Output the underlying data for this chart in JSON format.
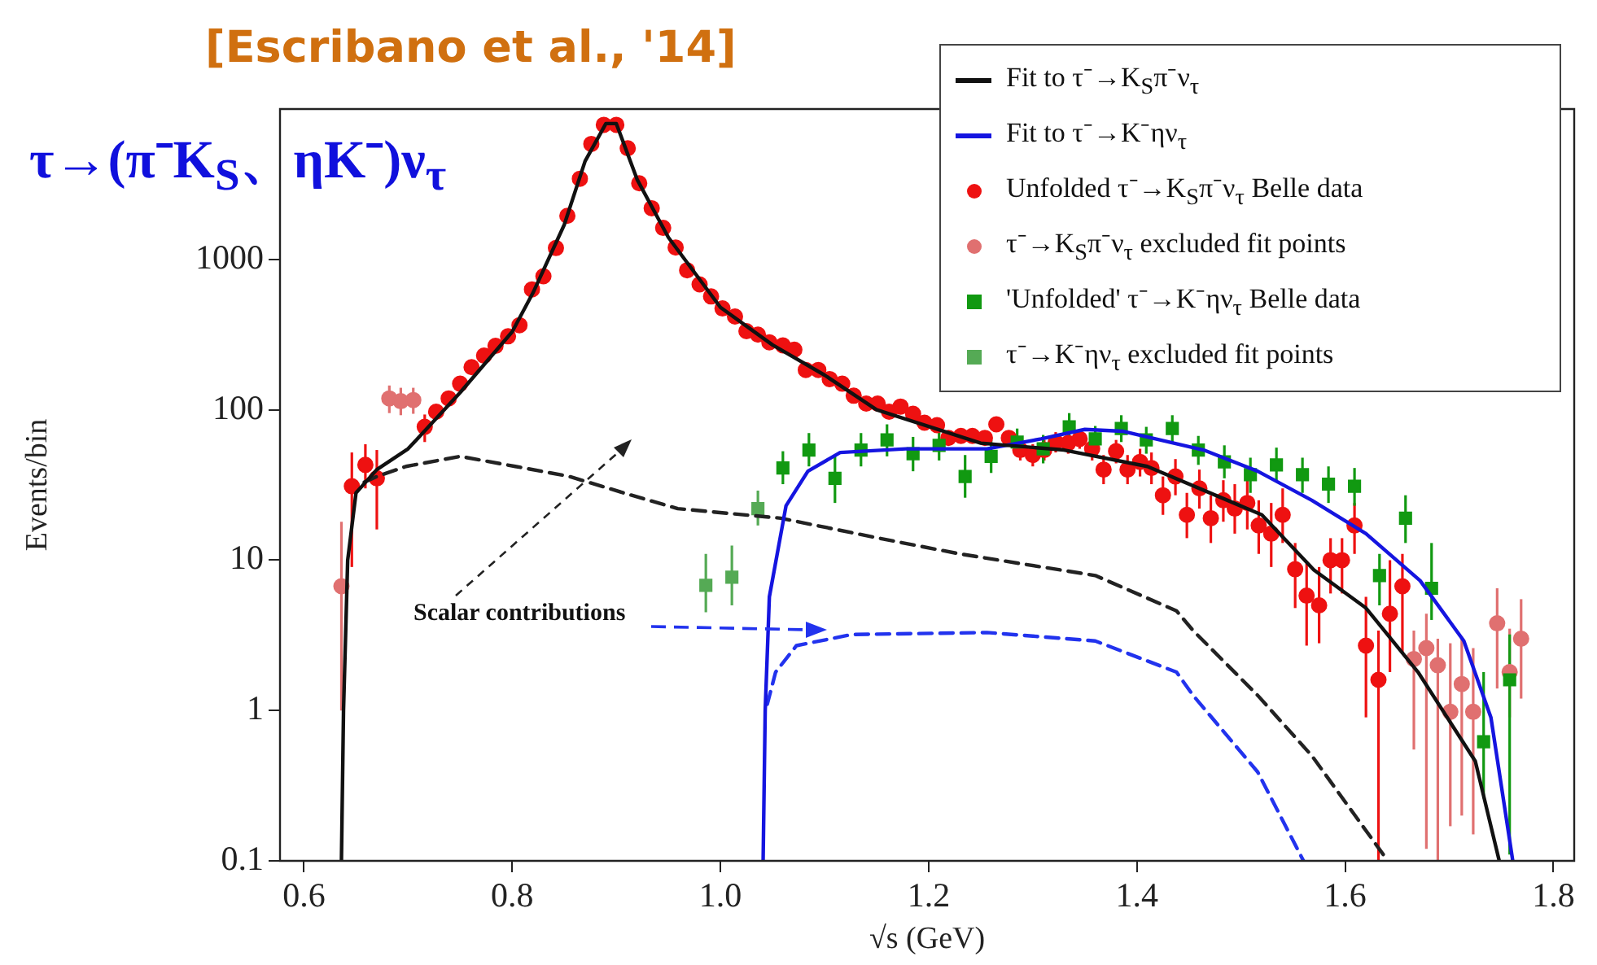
{
  "chart_data": {
    "type": "scatter",
    "title": "τ→(π⁻K$_{S}$、ηK⁻)ν$_{τ}$",
    "xlabel": "√s (GeV)",
    "ylabel": "Events/bin",
    "annotations": [
      "[Escribano et al., '14]",
      "Scalar contributions"
    ],
    "xlim": [
      0.577,
      1.82
    ],
    "xticks": [
      0.6,
      0.8,
      {
        "value": 1,
        "label": "1.0"
      },
      1.2,
      1.4,
      1.6,
      1.8
    ],
    "ylim": [
      0.1,
      10000
    ],
    "yticks": [
      0.1,
      1,
      10,
      100,
      1000
    ],
    "log": true,
    "legend": "top right",
    "series": [
      {
        "name": "Fit to τ⁻→K$_{S}$π⁻ν$_{τ}$",
        "type": "line",
        "line_style": "solid",
        "marker": "none",
        "color": "#111111",
        "x": [
          0.636,
          0.638,
          0.642,
          0.65,
          0.67,
          0.7,
          0.75,
          0.8,
          0.82,
          0.85,
          0.87,
          0.89,
          0.9,
          0.92,
          0.95,
          1.0,
          1.05,
          1.1,
          1.15,
          1.25,
          1.33,
          1.41,
          1.52,
          1.57,
          1.62,
          1.67,
          1.725,
          1.748
        ],
        "values": [
          0.1,
          1,
          10,
          28,
          40,
          55,
          130,
          330,
          600,
          1700,
          4500,
          8000,
          8000,
          3400,
          1400,
          480,
          270,
          170,
          100,
          60,
          54,
          42,
          20,
          8.6,
          4.8,
          1.8,
          0.46,
          0.1
        ]
      },
      {
        "name": "Fit to τ⁻→K⁻ην$_{τ}$",
        "type": "line",
        "line_style": "solid",
        "marker": "none",
        "color": "#1515e0",
        "x": [
          1.041,
          1.043,
          1.047,
          1.063,
          1.084,
          1.115,
          1.178,
          1.256,
          1.308,
          1.35,
          1.386,
          1.464,
          1.516,
          1.568,
          1.62,
          1.672,
          1.714,
          1.74,
          1.761
        ],
        "values": [
          0.1,
          1,
          5.7,
          23,
          39,
          52,
          55,
          55,
          64,
          74,
          72,
          54,
          39,
          25,
          15,
          7.3,
          2.9,
          0.9,
          0.1
        ]
      },
      {
        "name": "Unfolded τ⁻→K$_{S}$π⁻ν$_{τ}$ Belle data",
        "type": "scatter",
        "marker": "circle",
        "color": "#ee1111",
        "x": [
          0.646,
          0.659,
          0.67,
          0.716,
          0.727,
          0.739,
          0.75,
          0.761,
          0.773,
          0.784,
          0.796,
          0.807,
          0.819,
          0.83,
          0.842,
          0.853,
          0.865,
          0.876,
          0.888,
          0.9,
          0.911,
          0.922,
          0.934,
          0.945,
          0.957,
          0.968,
          0.98,
          0.991,
          1.002,
          1.014,
          1.025,
          1.036,
          1.047,
          1.06,
          1.071,
          1.082,
          1.094,
          1.105,
          1.117,
          1.128,
          1.14,
          1.151,
          1.162,
          1.173,
          1.185,
          1.196,
          1.208,
          1.219,
          1.231,
          1.242,
          1.254,
          1.265,
          1.277,
          1.288,
          1.3,
          1.311,
          1.322,
          1.334,
          1.345,
          1.357,
          1.368,
          1.38,
          1.391,
          1.403,
          1.414,
          1.425,
          1.437,
          1.448,
          1.46,
          1.471,
          1.483,
          1.494,
          1.506,
          1.517,
          1.529,
          1.54,
          1.552,
          1.563,
          1.575,
          1.586,
          1.597,
          1.609,
          1.62,
          1.632,
          1.643,
          1.655
        ],
        "values": [
          31,
          43,
          35,
          77,
          97,
          119,
          149,
          192,
          229,
          266,
          308,
          365,
          632,
          773,
          1190,
          1950,
          3440,
          5860,
          7850,
          7850,
          5480,
          3210,
          2190,
          1620,
          1200,
          847,
          682,
          567,
          472,
          417,
          333,
          316,
          281,
          268,
          251,
          184,
          184,
          160,
          149,
          124,
          110,
          110,
          97,
          105,
          94,
          82,
          79,
          65,
          67,
          67,
          65,
          80,
          65,
          54,
          50,
          54,
          61,
          60,
          64,
          55,
          40,
          53,
          40,
          45,
          41,
          27,
          36,
          20,
          30,
          19,
          25,
          22,
          24,
          17,
          15,
          20,
          8.7,
          5.8,
          5.0,
          10,
          10,
          17,
          2.7,
          1.6,
          4.4,
          6.7
        ],
        "errors": [
          [
            9,
            52
          ],
          [
            30,
            59
          ],
          [
            16,
            54
          ],
          [
            61,
            93
          ],
          null,
          null,
          null,
          null,
          null,
          null,
          null,
          null,
          null,
          null,
          null,
          null,
          null,
          null,
          null,
          null,
          null,
          null,
          null,
          null,
          null,
          null,
          null,
          null,
          null,
          null,
          null,
          null,
          null,
          null,
          null,
          null,
          null,
          null,
          null,
          null,
          null,
          null,
          null,
          null,
          null,
          null,
          null,
          null,
          null,
          null,
          null,
          null,
          null,
          [
            46,
            63
          ],
          [
            42,
            59
          ],
          [
            46,
            63
          ],
          [
            52,
            71
          ],
          [
            51,
            70
          ],
          [
            55,
            74
          ],
          [
            46,
            65
          ],
          [
            32,
            50
          ],
          [
            44,
            63
          ],
          [
            32,
            50
          ],
          [
            36,
            55
          ],
          [
            32,
            52
          ],
          [
            20,
            36
          ],
          [
            27,
            47
          ],
          [
            14,
            28
          ],
          [
            22,
            40
          ],
          [
            13,
            27
          ],
          [
            18,
            34
          ],
          [
            15,
            32
          ],
          [
            16,
            34
          ],
          [
            11,
            25
          ],
          [
            9,
            24
          ],
          [
            13,
            30
          ],
          [
            4.8,
            13
          ],
          [
            2.7,
            9.5
          ],
          [
            2.8,
            9
          ],
          [
            6,
            14
          ],
          [
            6,
            14
          ],
          [
            11,
            24
          ],
          [
            0.9,
            5.7
          ],
          [
            0.1,
            3.4
          ],
          [
            1.8,
            10
          ],
          [
            2.4,
            11
          ]
        ]
      },
      {
        "name": "τ⁻→K$_{S}$π⁻ν$_{τ}$ excluded fit points",
        "type": "scatter",
        "marker": "circle",
        "color": "#e07070",
        "x": [
          0.636,
          0.682,
          0.693,
          0.705,
          1.666,
          1.678,
          1.689,
          1.701,
          1.712,
          1.723,
          1.746,
          1.758,
          1.769
        ],
        "values": [
          6.7,
          119,
          114,
          116,
          2.2,
          2.6,
          2.0,
          0.98,
          1.5,
          0.98,
          3.8,
          1.8,
          3.0
        ],
        "errors": [
          [
            1,
            18
          ],
          [
            95,
            145
          ],
          [
            92,
            140
          ],
          [
            94,
            140
          ],
          [
            0.55,
            3.4
          ],
          [
            0.12,
            4.4
          ],
          [
            0.1,
            3.0
          ],
          [
            0.17,
            2.8
          ],
          [
            0.2,
            3.1
          ],
          [
            0.15,
            2.6
          ],
          [
            1.4,
            6.5
          ],
          [
            0.9,
            3.5
          ],
          [
            1.2,
            5.5
          ]
        ]
      },
      {
        "name": "'Unfolded' τ⁻→K⁻ην$_{τ}$ Belle data",
        "type": "scatter",
        "marker": "square",
        "color": "#119911",
        "x": [
          1.06,
          1.085,
          1.11,
          1.135,
          1.16,
          1.185,
          1.21,
          1.235,
          1.26,
          1.285,
          1.31,
          1.335,
          1.36,
          1.385,
          1.409,
          1.434,
          1.459,
          1.484,
          1.509,
          1.534,
          1.559,
          1.584,
          1.609,
          1.633,
          1.658,
          1.683,
          1.733,
          1.758
        ],
        "values": [
          41,
          54,
          35,
          54,
          63,
          51,
          58,
          36,
          49,
          61,
          55,
          77,
          64,
          75,
          63,
          75,
          54,
          45,
          37,
          43,
          37,
          32,
          31,
          7.9,
          19,
          6.5,
          0.62,
          1.6
        ],
        "errors": [
          [
            32,
            53
          ],
          [
            42,
            70
          ],
          [
            24,
            50
          ],
          [
            42,
            70
          ],
          [
            49,
            80
          ],
          [
            39,
            66
          ],
          [
            46,
            72
          ],
          [
            26,
            50
          ],
          [
            38,
            63
          ],
          [
            49,
            75
          ],
          [
            44,
            68
          ],
          [
            62,
            95
          ],
          [
            52,
            78
          ],
          [
            61,
            92
          ],
          [
            51,
            77
          ],
          [
            61,
            92
          ],
          [
            43,
            67
          ],
          [
            35,
            58
          ],
          [
            28,
            48
          ],
          [
            33,
            56
          ],
          [
            28,
            48
          ],
          [
            24,
            42
          ],
          [
            23,
            41
          ],
          [
            5,
            11
          ],
          [
            13,
            27
          ],
          [
            4,
            13
          ],
          [
            0.26,
            1.8
          ],
          [
            0.11,
            3.2
          ]
        ]
      },
      {
        "name": "τ⁻→K⁻ην$_{τ}$ excluded fit points",
        "type": "scatter",
        "marker": "square",
        "color": "#55aa55",
        "x": [
          0.986,
          1.011,
          1.036
        ],
        "values": [
          6.8,
          7.7,
          22
        ],
        "errors": [
          [
            4.5,
            11
          ],
          [
            5,
            12.5
          ],
          [
            17,
            29
          ]
        ]
      },
      {
        "type": "line",
        "line_style": "dashed",
        "marker": "none",
        "color": "#222222",
        "x": [
          0.658,
          0.67,
          0.698,
          0.75,
          0.803,
          0.855,
          0.907,
          0.959,
          1.058,
          1.152,
          1.23,
          1.36,
          1.438,
          1.454,
          1.516,
          1.568,
          1.641
        ],
        "values": [
          33,
          36,
          42,
          49,
          42,
          36,
          28,
          22,
          19,
          14,
          11,
          7.9,
          4.6,
          3.4,
          1.26,
          0.5,
          0.1
        ]
      },
      {
        "type": "line",
        "line_style": "dashed",
        "marker": "none",
        "color": "#2233ee",
        "x": [
          1.045,
          1.053,
          1.073,
          1.126,
          1.256,
          1.36,
          1.438,
          1.454,
          1.516,
          1.56
        ],
        "values": [
          1.1,
          1.8,
          2.7,
          3.2,
          3.3,
          2.9,
          1.8,
          1.26,
          0.39,
          0.1
        ]
      }
    ]
  }
}
